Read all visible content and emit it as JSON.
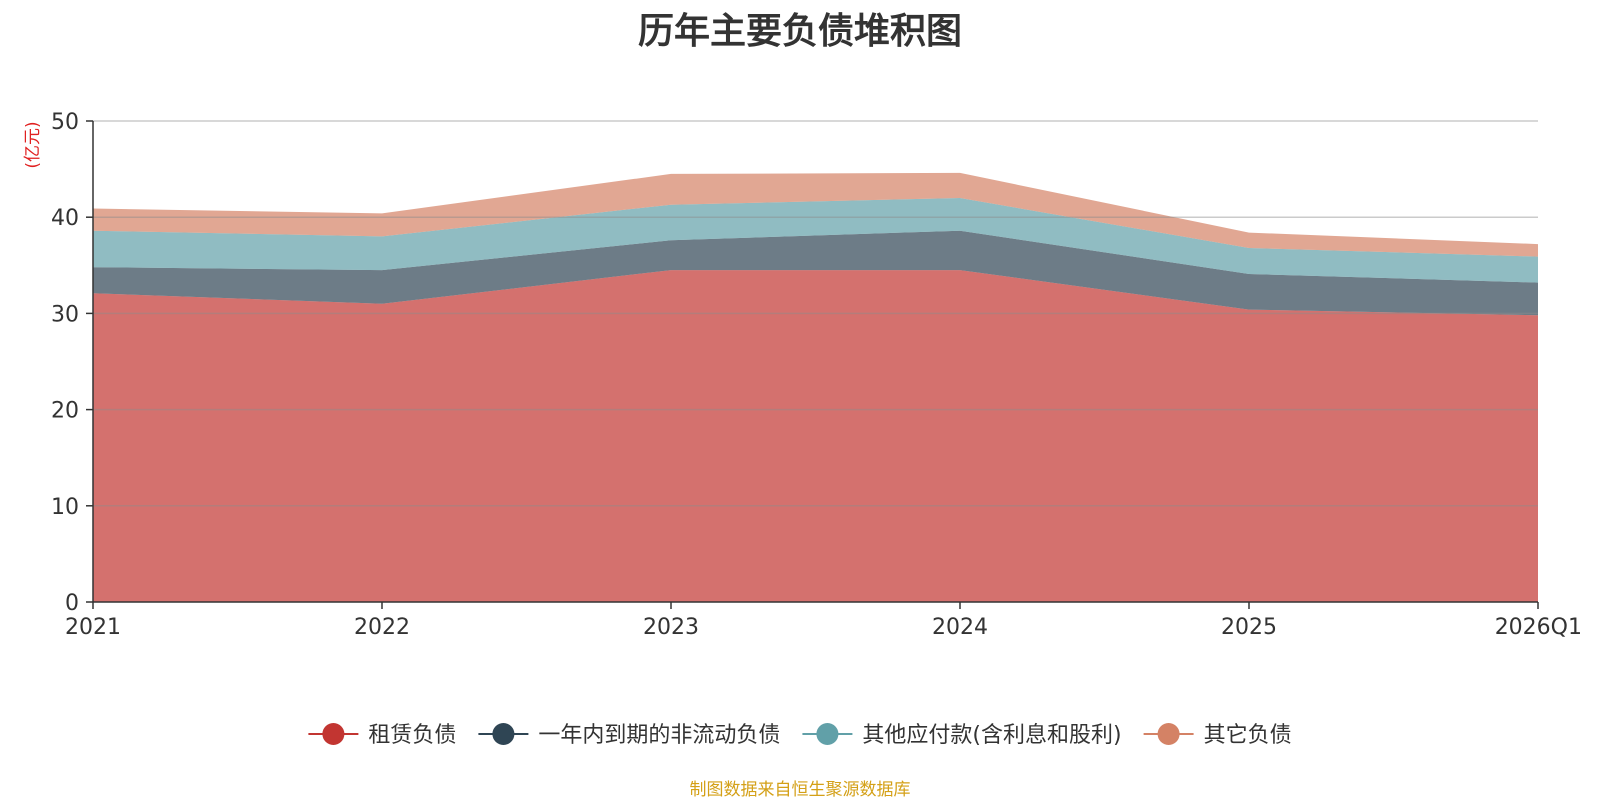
{
  "chart_data": {
    "type": "area",
    "stacked": true,
    "title": "历年主要负债堆积图",
    "ylabel": "(亿元)",
    "xlabel": "",
    "ylim": [
      0,
      50
    ],
    "yticks": [
      0,
      10,
      20,
      30,
      40,
      50
    ],
    "categories": [
      "2021",
      "2022",
      "2023",
      "2024",
      "2025",
      "2026Q1"
    ],
    "series": [
      {
        "name": "租赁负债",
        "color": "#c23531",
        "values": [
          32.1,
          31.0,
          34.5,
          34.5,
          30.4,
          29.8
        ]
      },
      {
        "name": "一年内到期的非流动负债",
        "color": "#2f4554",
        "values": [
          2.7,
          3.5,
          3.1,
          4.1,
          3.7,
          3.4
        ]
      },
      {
        "name": "其他应付款(含利息和股利)",
        "color": "#61a0a8",
        "values": [
          3.8,
          3.5,
          3.7,
          3.4,
          2.7,
          2.7
        ]
      },
      {
        "name": "其它负债",
        "color": "#d48265",
        "values": [
          2.3,
          2.4,
          3.2,
          2.6,
          1.6,
          1.3
        ]
      }
    ],
    "legend_position": "bottom",
    "grid": true
  },
  "source_note": "制图数据来自恒生聚源数据库"
}
